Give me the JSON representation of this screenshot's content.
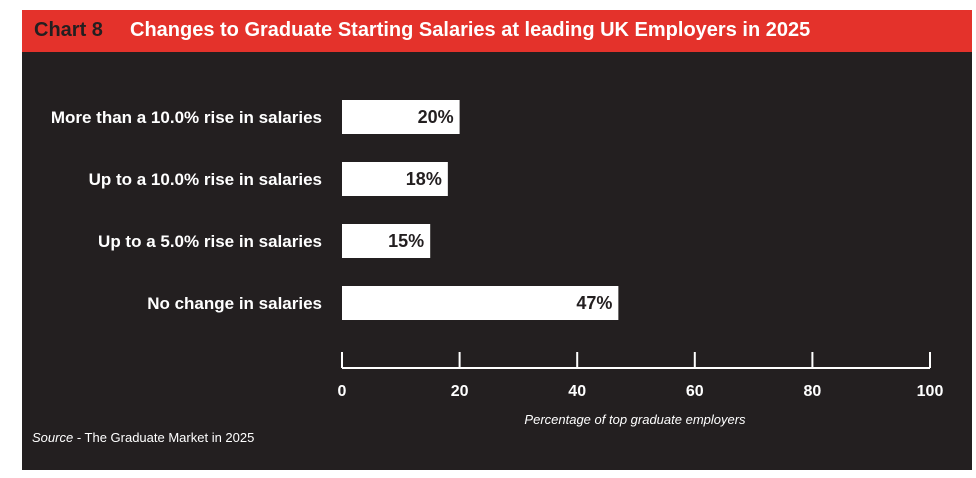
{
  "header": {
    "chart_number": "Chart 8",
    "title": "Changes to Graduate Starting Salaries at leading UK Employers in 2025"
  },
  "source": {
    "prefix": "Source",
    "text": " - The Graduate Market in 2025"
  },
  "colors": {
    "header_bg": "#e4322b",
    "panel_bg": "#231f20",
    "bar": "#ffffff",
    "text": "#ffffff"
  },
  "chart_data": {
    "type": "bar",
    "orientation": "horizontal",
    "categories": [
      "More than a 10.0% rise in salaries",
      "Up to a 10.0% rise in salaries",
      "Up to a 5.0% rise in salaries",
      "No change in salaries"
    ],
    "values": [
      20,
      18,
      15,
      47
    ],
    "value_labels": [
      "20%",
      "18%",
      "15%",
      "47%"
    ],
    "xlabel": "Percentage of top graduate employers",
    "xlim": [
      0,
      100
    ],
    "xticks": [
      0,
      20,
      40,
      60,
      80,
      100
    ],
    "grid": false
  }
}
